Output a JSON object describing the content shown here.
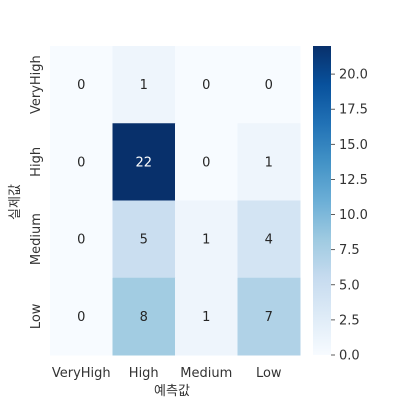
{
  "chart_data": {
    "type": "heatmap",
    "xlabel": "예측값",
    "ylabel": "실제값",
    "x_categories": [
      "VeryHigh",
      "High",
      "Medium",
      "Low"
    ],
    "y_categories": [
      "VeryHigh",
      "High",
      "Medium",
      "Low"
    ],
    "values": [
      [
        0,
        1,
        0,
        0
      ],
      [
        0,
        22,
        0,
        1
      ],
      [
        0,
        5,
        1,
        4
      ],
      [
        0,
        8,
        1,
        7
      ]
    ],
    "colorbar": {
      "range": [
        0,
        22
      ],
      "ticks": [
        "0.0",
        "2.5",
        "5.0",
        "7.5",
        "10.0",
        "12.5",
        "15.0",
        "17.5",
        "20.0"
      ],
      "colormap": "Blues"
    }
  }
}
